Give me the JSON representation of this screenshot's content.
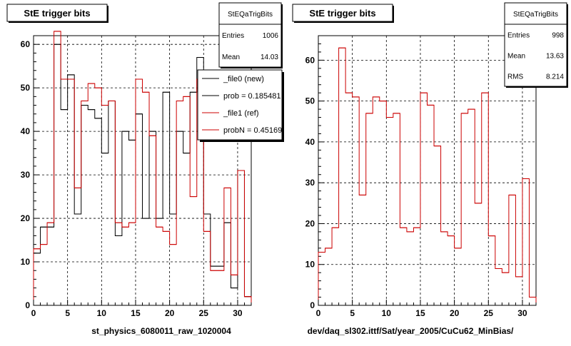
{
  "chart_data": [
    {
      "type": "histogram",
      "title": "StE trigger bits",
      "xlabel": "st_physics_6080011_raw_1020004",
      "xlim": [
        0,
        32
      ],
      "ylim": [
        0,
        62
      ],
      "xticks": [
        0,
        5,
        10,
        15,
        20,
        25,
        30
      ],
      "yticks": [
        0,
        10,
        20,
        30,
        40,
        50,
        60
      ],
      "grid": true,
      "stats": {
        "name": "StEQaTrigBits",
        "rows": [
          {
            "label": "Entries",
            "value": "1006"
          },
          {
            "label": "Mean",
            "value": "14.03"
          }
        ]
      },
      "legend": {
        "placement": "top-right",
        "entries": [
          {
            "label": "_file0 (new)",
            "color": "#000000"
          },
          {
            "label": "prob = 0.185481",
            "color": "#000000"
          },
          {
            "label": "_file1 (ref)",
            "color": "#cc0000"
          },
          {
            "label": "probN = 0.451695",
            "color": "#cc0000"
          }
        ]
      },
      "series": [
        {
          "name": "_file0 (new)",
          "color": "#000000",
          "values": [
            12,
            18,
            18,
            60,
            45,
            53,
            21,
            46,
            45,
            43,
            35,
            47,
            16,
            40,
            38,
            44,
            20,
            40,
            20,
            49,
            21,
            40,
            35,
            49,
            57,
            21,
            9,
            9,
            19,
            4,
            31,
            2
          ]
        },
        {
          "name": "_file1 (ref)",
          "color": "#cc0000",
          "values": [
            13,
            14,
            19,
            63,
            52,
            52,
            27,
            47,
            51,
            50,
            46,
            47,
            19,
            18,
            19,
            52,
            49,
            39,
            18,
            17,
            14,
            47,
            48,
            25,
            52,
            17,
            8,
            8,
            27,
            7,
            31,
            2
          ]
        }
      ]
    },
    {
      "type": "histogram",
      "title": "StE trigger bits",
      "xlabel": "dev/daq_sl302.ittf/Sat/year_2005/CuCu62_MinBias/",
      "xlim": [
        0,
        32
      ],
      "ylim": [
        0,
        66
      ],
      "xticks": [
        0,
        5,
        10,
        15,
        20,
        25,
        30
      ],
      "yticks": [
        0,
        10,
        20,
        30,
        40,
        50,
        60
      ],
      "grid": true,
      "stats": {
        "name": "StEQaTrigBits",
        "rows": [
          {
            "label": "Entries",
            "value": "998"
          },
          {
            "label": "Mean",
            "value": "13.63"
          },
          {
            "label": "RMS",
            "value": "8.214"
          }
        ]
      },
      "series": [
        {
          "color": "#cc0000",
          "values": [
            13,
            14,
            19,
            63,
            52,
            51,
            27,
            47,
            51,
            50,
            46,
            47,
            19,
            18,
            19,
            52,
            49,
            39,
            18,
            17,
            14,
            47,
            48,
            25,
            52,
            17,
            9,
            8,
            27,
            7,
            31,
            2
          ]
        }
      ]
    }
  ]
}
